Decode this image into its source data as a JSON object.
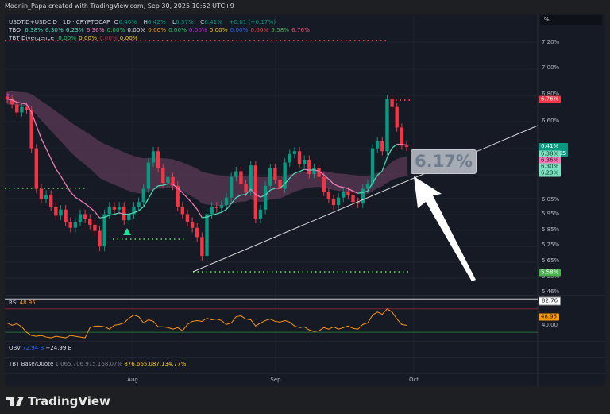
{
  "credit": "Moonin_Papa created with TradingView.com, Sep 30, 2025 10:52 UTC+9",
  "symbol": {
    "name": "USDT.D+USDC.D · 1D · CRYPTOCAP",
    "o_label": "O",
    "o": "6.40%",
    "h_label": "H",
    "h": "6.42%",
    "l_label": "L",
    "l": "6.37%",
    "c_label": "C",
    "c": "6.41%",
    "change": "+0.01 (+0.17%)"
  },
  "tbo": {
    "label": "TBO",
    "values": [
      {
        "v": "6.38%",
        "color": "#4dd8b0"
      },
      {
        "v": "6.30%",
        "color": "#4dd8b0"
      },
      {
        "v": "6.23%",
        "color": "#4dd8b0"
      },
      {
        "v": "6.36%",
        "color": "#f07ab8"
      },
      {
        "v": "0.00%",
        "color": "#22c55e"
      },
      {
        "v": "0.00%",
        "color": "#e0e0e0"
      },
      {
        "v": "0.00%",
        "color": "#f59e0b"
      },
      {
        "v": "0.00%",
        "color": "#22c55e"
      },
      {
        "v": "0.00%",
        "color": "#c026d3"
      },
      {
        "v": "0.00%",
        "color": "#facc15"
      },
      {
        "v": "0.00%",
        "color": "#2563eb"
      },
      {
        "v": "0.00%",
        "color": "#ef4444"
      },
      {
        "v": "5.58%",
        "color": "#4caf50"
      },
      {
        "v": "6.76%",
        "color": "#f0506e"
      }
    ]
  },
  "tbt_divergence": {
    "label": "TBT Divergence",
    "values": [
      {
        "v": "0.00%",
        "color": "#22c55e"
      },
      {
        "v": "0.00%",
        "color": "#facc15"
      },
      {
        "v": "0.00%",
        "color": "#b0203a"
      },
      {
        "v": "0.00%",
        "color": "#facc15"
      }
    ]
  },
  "price_axis": {
    "unit": "%",
    "ticks": [
      "7.20%",
      "7.00%",
      "6.80%",
      "6.60%",
      "6.05%",
      "5.95%",
      "5.85%",
      "5.75%",
      "5.65%",
      "5.55%",
      "5.46%"
    ],
    "tick_values": [
      7.2,
      7.0,
      6.8,
      6.6,
      6.05,
      5.95,
      5.85,
      5.75,
      5.65,
      5.55,
      5.46
    ],
    "scale": "log",
    "labels": [
      {
        "text": "6.76%",
        "value": 6.76,
        "bg": "#f23645",
        "fg": "#ffffff"
      },
      {
        "text": "6.41%",
        "value": 6.41,
        "bg": "#089981",
        "fg": "#ffffff",
        "countdown": "22:07:55"
      },
      {
        "text": "6.38%",
        "value": 6.36,
        "bg": "#7ee0c0",
        "fg": "#0b3d33"
      },
      {
        "text": "6.36%",
        "value": 6.315,
        "bg": "#f07ab8",
        "fg": "#3d0b24"
      },
      {
        "text": "6.30%",
        "value": 6.27,
        "bg": "#7ee0c0",
        "fg": "#0b3d33"
      },
      {
        "text": "6.23%",
        "value": 6.225,
        "bg": "#7ee0c0",
        "fg": "#0b3d33"
      },
      {
        "text": "5.58%",
        "value": 5.575,
        "bg": "#4caf50",
        "fg": "#ffffff"
      }
    ]
  },
  "annotation": {
    "callout": "6.17%"
  },
  "rsi": {
    "label": "RSI",
    "value": "48.95",
    "axis_label": "82.76",
    "axis_value_label": "48.95",
    "tick": "40.00"
  },
  "obv": {
    "label": "OBV",
    "v1": "72.94 B",
    "v2": "−24.99 B"
  },
  "tbt_base_quote": {
    "label": "TBT Base/Quote",
    "v1": "1,065,706,915,168.07%",
    "v2": "876,665,087,134.77%"
  },
  "time_axis": [
    "Aug",
    "Sep",
    "Oct"
  ],
  "logo": "TradingView",
  "colors": {
    "up": "#089981",
    "down": "#f23645",
    "ma_pink": "#f07ab8",
    "ma_teal": "#4dd8b0",
    "rsi": "#f7931a",
    "cloud": "#5a3a55"
  },
  "chart_data": {
    "type": "candlestick",
    "closes": [
      6.76,
      6.72,
      6.66,
      6.7,
      6.68,
      6.4,
      6.12,
      6.05,
      6.08,
      6.0,
      5.94,
      5.98,
      5.9,
      5.86,
      5.9,
      5.95,
      5.92,
      5.88,
      5.84,
      5.74,
      5.95,
      6.0,
      5.98,
      6.0,
      5.91,
      5.95,
      6.0,
      6.03,
      6.12,
      6.3,
      6.38,
      6.26,
      6.16,
      6.2,
      6.14,
      6.0,
      5.95,
      5.9,
      5.86,
      5.8,
      5.68,
      5.95,
      6.0,
      5.99,
      6.01,
      6.06,
      6.2,
      6.24,
      6.15,
      6.1,
      6.28,
      5.92,
      5.98,
      6.14,
      6.26,
      6.18,
      6.12,
      6.3,
      6.36,
      6.38,
      6.29,
      6.32,
      6.22,
      6.26,
      6.2,
      6.1,
      6.05,
      6.01,
      6.06,
      6.1,
      6.08,
      6.03,
      6.02,
      6.12,
      6.15,
      6.4,
      6.45,
      6.38,
      6.76,
      6.7,
      6.55,
      6.42,
      6.41
    ],
    "rsi": [
      52,
      49,
      51,
      47,
      40,
      36,
      35,
      36,
      34,
      33,
      35,
      34,
      33,
      36,
      35,
      34,
      33,
      46,
      48,
      48,
      47,
      44,
      49,
      50,
      52,
      58,
      62,
      60,
      52,
      56,
      54,
      47,
      47,
      46,
      44,
      46,
      42,
      50,
      54,
      55,
      54,
      58,
      56,
      57,
      55,
      50,
      52,
      60,
      61,
      57,
      56,
      48,
      52,
      55,
      57,
      54,
      53,
      55,
      53,
      48,
      46,
      47,
      43,
      41,
      42,
      46,
      44,
      47,
      44,
      46,
      48,
      45,
      44,
      50,
      52,
      62,
      66,
      63,
      70,
      66,
      57,
      50,
      49
    ],
    "rsi_ylim": [
      30,
      85
    ],
    "rsi_bands": [
      70,
      40
    ]
  }
}
